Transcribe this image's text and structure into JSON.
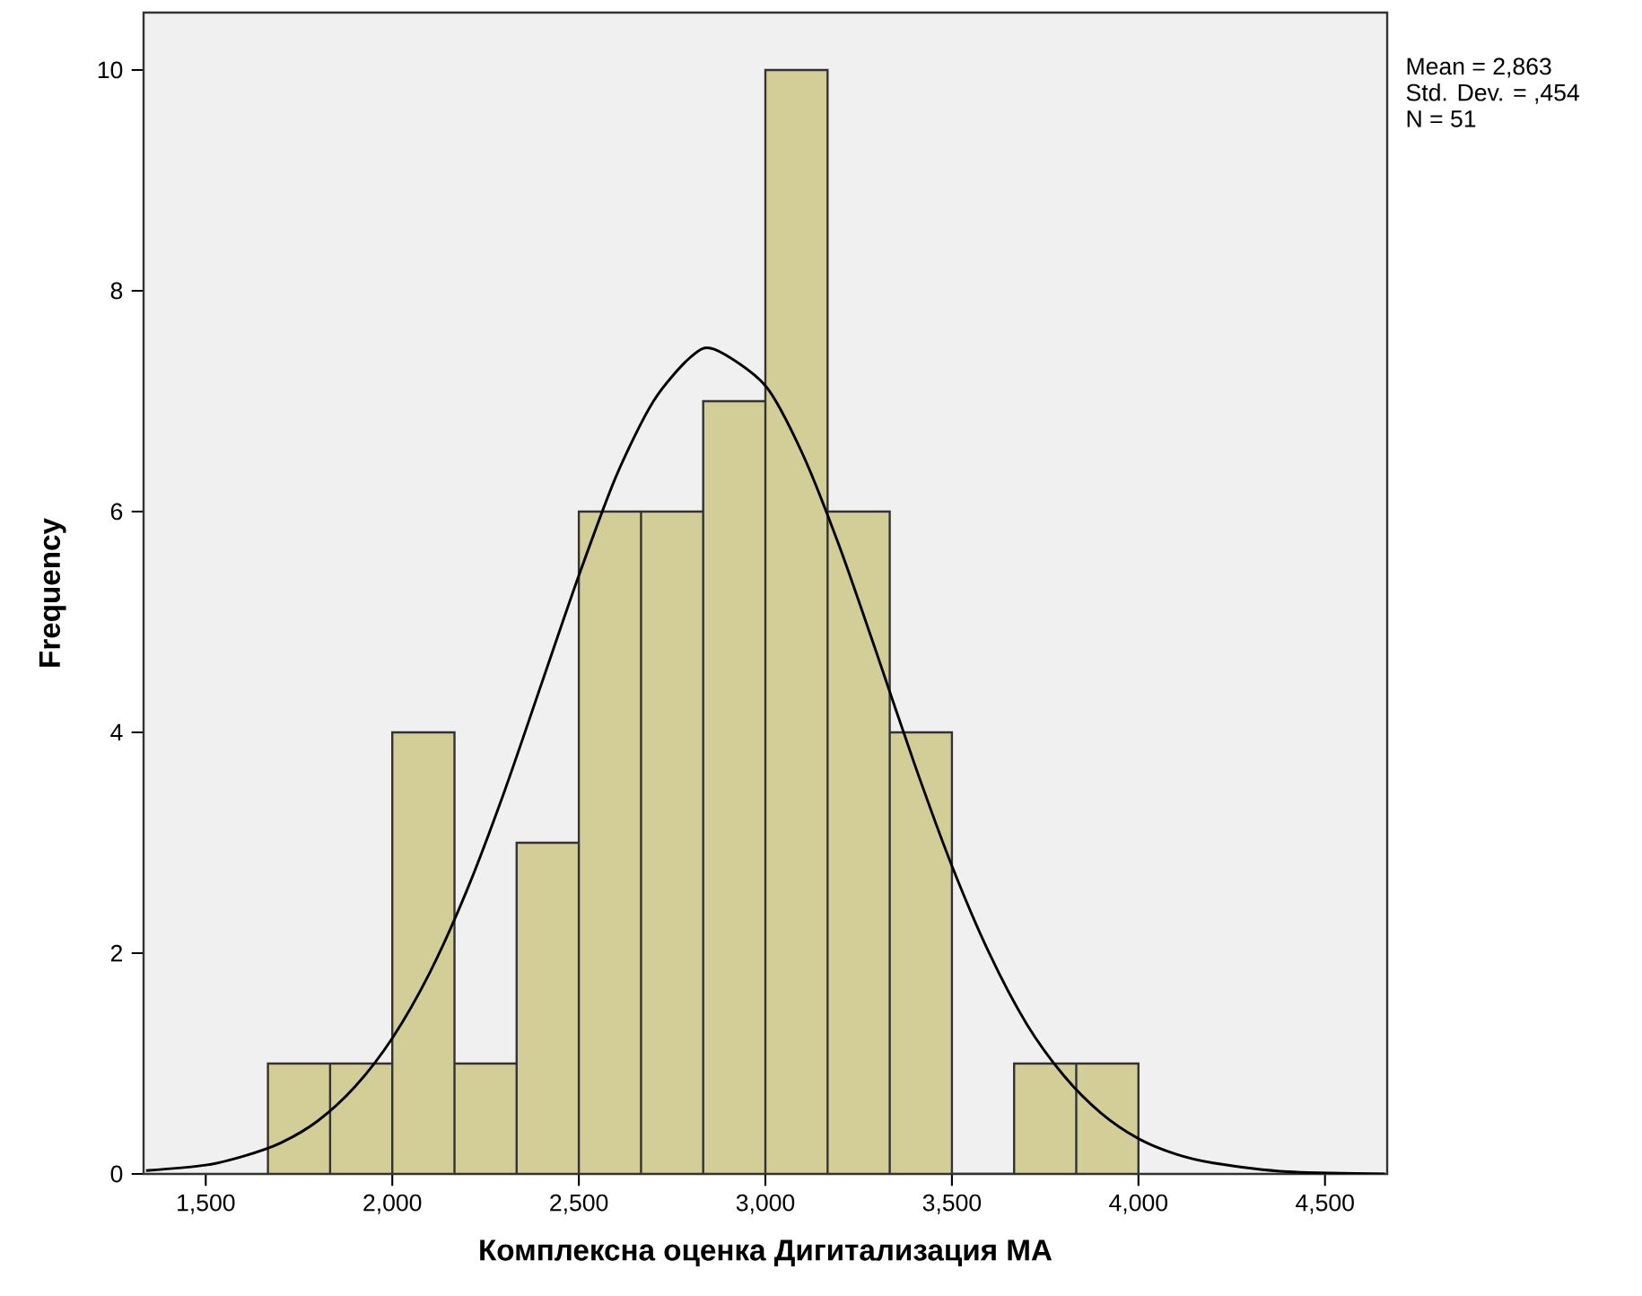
{
  "chart_data": {
    "type": "histogram",
    "xlabel": "Комплексна оценка Дигитализация МА",
    "ylabel": "Frequency",
    "annotations": [
      "Mean = 2,863",
      "Std. Dev. = ,454",
      "N = 51"
    ],
    "bins": [
      1666.7,
      1833.3,
      2000,
      2166.7,
      2333.3,
      2500,
      2666.7,
      2833.3,
      3000,
      3166.7,
      3333.3,
      3500,
      3666.7,
      3833.3,
      4000
    ],
    "values": [
      1,
      1,
      4,
      1,
      3,
      6,
      6,
      7,
      10,
      6,
      4,
      0,
      1,
      1
    ],
    "color": "#d3ce97",
    "series": [
      {
        "type": "line",
        "color": "#000000",
        "x": [
          1340,
          1500,
          1600,
          1700,
          1800,
          1900,
          2000,
          2100,
          2200,
          2300,
          2400,
          2500,
          2600,
          2700,
          2800,
          2863,
          3000,
          3100,
          3200,
          3300,
          3400,
          3500,
          3600,
          3700,
          3800,
          3900,
          4000,
          4100,
          4200,
          4400,
          4660
        ],
        "values": [
          0.03,
          0.08,
          0.16,
          0.28,
          0.48,
          0.79,
          1.23,
          1.82,
          2.57,
          3.46,
          4.44,
          5.42,
          6.32,
          7.0,
          7.4,
          7.47,
          7.14,
          6.52,
          5.67,
          4.7,
          3.71,
          2.79,
          2.0,
          1.36,
          0.89,
          0.55,
          0.32,
          0.18,
          0.1,
          0.02,
          0.0
        ]
      }
    ],
    "xlim": [
      1333.3,
      4666.7
    ],
    "ylim": [
      0,
      10.52
    ],
    "xticks": [
      {
        "value": 1500,
        "label": "1,500"
      },
      {
        "value": 2000,
        "label": "2,000"
      },
      {
        "value": 2500,
        "label": "2,500"
      },
      {
        "value": 3000,
        "label": "3,000"
      },
      {
        "value": 3500,
        "label": "3,500"
      },
      {
        "value": 4000,
        "label": "4,000"
      },
      {
        "value": 4500,
        "label": "4,500"
      }
    ],
    "yticks": [
      0,
      2,
      4,
      6,
      8,
      10
    ]
  }
}
